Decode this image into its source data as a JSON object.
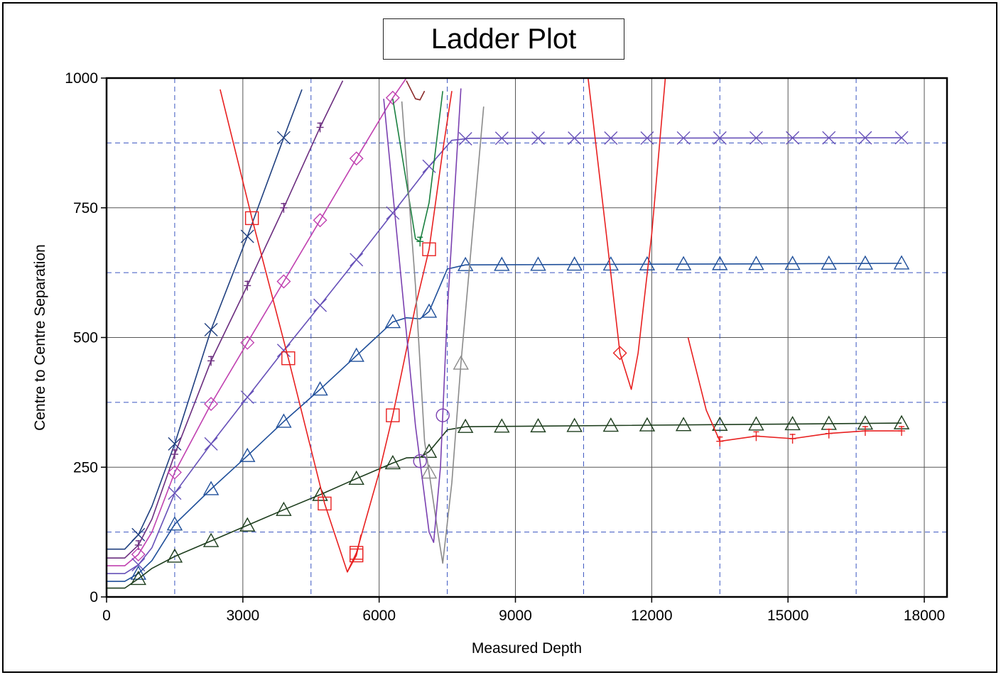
{
  "chart_data": {
    "type": "line",
    "title": "Ladder Plot",
    "xlabel": "Measured Depth",
    "ylabel": "Centre to Centre Separation",
    "xlim": [
      0,
      18500
    ],
    "ylim": [
      0,
      1000
    ],
    "x_ticks": [
      "0",
      "3000",
      "6000",
      "9000",
      "12000",
      "15000",
      "18000"
    ],
    "x_tick_values": [
      0,
      3000,
      6000,
      9000,
      12000,
      15000,
      18000
    ],
    "y_ticks": [
      "0",
      "250",
      "500",
      "750",
      "1000"
    ],
    "y_tick_values": [
      0,
      250,
      500,
      750,
      1000
    ],
    "dashed_x": [
      1500,
      4500,
      7500,
      10500,
      13500,
      16500
    ],
    "dashed_y": [
      125,
      375,
      625,
      875
    ],
    "grid": true,
    "series": [
      {
        "color": "#1f3f7f",
        "marker": "x",
        "markers_x": [
          700,
          1500,
          2300,
          3100,
          3900
        ],
        "points": [
          [
            0,
            92
          ],
          [
            400,
            92
          ],
          [
            700,
            120
          ],
          [
            1000,
            175
          ],
          [
            1500,
            295
          ],
          [
            2300,
            515
          ],
          [
            3100,
            695
          ],
          [
            3900,
            885
          ],
          [
            4300,
            978
          ]
        ]
      },
      {
        "color": "#6b2d7f",
        "marker": "plus",
        "markers_x": [
          700,
          1500,
          2300,
          3100,
          3900,
          4700
        ],
        "points": [
          [
            0,
            75
          ],
          [
            400,
            75
          ],
          [
            700,
            100
          ],
          [
            1000,
            150
          ],
          [
            1500,
            275
          ],
          [
            2300,
            455
          ],
          [
            3100,
            600
          ],
          [
            3900,
            750
          ],
          [
            4700,
            905
          ],
          [
            5200,
            995
          ]
        ]
      },
      {
        "color": "#c040b0",
        "marker": "diamond",
        "markers_x": [
          700,
          1500,
          2300,
          3100,
          3900,
          4700,
          5500,
          6300
        ],
        "points": [
          [
            0,
            60
          ],
          [
            400,
            60
          ],
          [
            700,
            82
          ],
          [
            1000,
            125
          ],
          [
            1500,
            240
          ],
          [
            2300,
            372
          ],
          [
            3100,
            490
          ],
          [
            3900,
            608
          ],
          [
            4700,
            726
          ],
          [
            5500,
            845
          ],
          [
            6300,
            962
          ],
          [
            6600,
            1000
          ]
        ]
      },
      {
        "color": "#6650b8",
        "marker": "x",
        "markers_x": [
          700,
          1500,
          2300,
          3100,
          3900,
          4700,
          5500,
          6300,
          7100,
          7900,
          8700,
          9500,
          10300,
          11100,
          11900,
          12700,
          13500,
          14300,
          15100,
          15900,
          16700,
          17500
        ],
        "points": [
          [
            0,
            45
          ],
          [
            400,
            45
          ],
          [
            700,
            62
          ],
          [
            1000,
            95
          ],
          [
            1500,
            200
          ],
          [
            2300,
            295
          ],
          [
            3100,
            385
          ],
          [
            3900,
            475
          ],
          [
            4700,
            562
          ],
          [
            5500,
            650
          ],
          [
            6300,
            740
          ],
          [
            7100,
            830
          ],
          [
            7600,
            880
          ],
          [
            8000,
            884
          ],
          [
            17500,
            885
          ]
        ]
      },
      {
        "color": "#1f4f9a",
        "marker": "triangle",
        "markers_x": [
          700,
          1500,
          2300,
          3100,
          3900,
          4700,
          5500,
          6300,
          7100,
          7900,
          8700,
          9500,
          10300,
          11100,
          11900,
          12700,
          13500,
          14300,
          15100,
          15900,
          16700,
          17500
        ],
        "points": [
          [
            0,
            30
          ],
          [
            400,
            30
          ],
          [
            700,
            45
          ],
          [
            1000,
            70
          ],
          [
            1500,
            140
          ],
          [
            2300,
            208
          ],
          [
            3100,
            272
          ],
          [
            3900,
            338
          ],
          [
            4700,
            400
          ],
          [
            5500,
            465
          ],
          [
            6300,
            530
          ],
          [
            6600,
            538
          ],
          [
            6900,
            536
          ],
          [
            7100,
            550
          ],
          [
            7500,
            632
          ],
          [
            7900,
            640
          ],
          [
            17500,
            643
          ]
        ]
      },
      {
        "color": "#1d3d1d",
        "marker": "triangle",
        "markers_x": [
          700,
          1500,
          2300,
          3100,
          3900,
          4700,
          5500,
          6300,
          7100,
          7900,
          8700,
          9500,
          10300,
          11100,
          11900,
          12700,
          13500,
          14300,
          15100,
          15900,
          16700,
          17500
        ],
        "points": [
          [
            0,
            17
          ],
          [
            400,
            17
          ],
          [
            700,
            35
          ],
          [
            1000,
            55
          ],
          [
            1500,
            78
          ],
          [
            2300,
            108
          ],
          [
            3100,
            138
          ],
          [
            3900,
            168
          ],
          [
            4700,
            197
          ],
          [
            5500,
            228
          ],
          [
            6300,
            258
          ],
          [
            6600,
            268
          ],
          [
            6900,
            269
          ],
          [
            7100,
            280
          ],
          [
            7500,
            322
          ],
          [
            7900,
            328
          ],
          [
            17500,
            335
          ]
        ]
      },
      {
        "color": "#e82020",
        "marker": "square",
        "markers_x": [
          3200,
          4000,
          4800,
          5500
        ],
        "points": [
          [
            2500,
            978
          ],
          [
            3200,
            730
          ],
          [
            4000,
            460
          ],
          [
            4800,
            180
          ],
          [
            5300,
            48
          ],
          [
            5500,
            80
          ],
          [
            5600,
            120
          ]
        ]
      },
      {
        "color": "#e82020",
        "marker": "square",
        "markers_x": [
          5500,
          6300,
          7100
        ],
        "points": [
          [
            5300,
            48
          ],
          [
            5500,
            85
          ],
          [
            6000,
            240
          ],
          [
            6300,
            350
          ],
          [
            6800,
            560
          ],
          [
            7100,
            670
          ],
          [
            7400,
            860
          ],
          [
            7600,
            975
          ]
        ]
      },
      {
        "color": "#e82020",
        "marker": "plus",
        "markers_x": [
          13500,
          14300,
          15100,
          15900,
          16700,
          17500
        ],
        "points": [
          [
            12800,
            500
          ],
          [
            13200,
            360
          ],
          [
            13500,
            300
          ],
          [
            14300,
            310
          ],
          [
            15100,
            305
          ],
          [
            15900,
            315
          ],
          [
            16700,
            320
          ],
          [
            17500,
            320
          ]
        ]
      },
      {
        "color": "#e82020",
        "marker": "diamond",
        "markers_x": [
          11300
        ],
        "points": [
          [
            10600,
            1000
          ],
          [
            11000,
            700
          ],
          [
            11300,
            470
          ],
          [
            11550,
            400
          ],
          [
            11700,
            470
          ],
          [
            12000,
            700
          ],
          [
            12300,
            1000
          ]
        ]
      },
      {
        "color": "#8a2a2a",
        "marker": "none",
        "markers_x": [],
        "points": [
          [
            6600,
            995
          ],
          [
            6800,
            960
          ],
          [
            6900,
            958
          ],
          [
            7000,
            975
          ]
        ]
      },
      {
        "color": "#1a8040",
        "marker": "plus",
        "markers_x": [
          6900
        ],
        "points": [
          [
            6300,
            960
          ],
          [
            6600,
            800
          ],
          [
            6800,
            690
          ],
          [
            6900,
            685
          ],
          [
            7100,
            760
          ],
          [
            7400,
            975
          ]
        ]
      },
      {
        "color": "#8a8a8a",
        "marker": "triangle",
        "markers_x": [
          7100,
          7800
        ],
        "points": [
          [
            6500,
            955
          ],
          [
            6800,
            600
          ],
          [
            7000,
            300
          ],
          [
            7300,
            120
          ],
          [
            7400,
            65
          ],
          [
            7600,
            220
          ],
          [
            7800,
            450
          ],
          [
            8300,
            945
          ]
        ]
      },
      {
        "color": "#7a40b0",
        "marker": "circle",
        "markers_x": [
          7400,
          6900
        ],
        "points": [
          [
            6100,
            960
          ],
          [
            6500,
            600
          ],
          [
            6800,
            330
          ],
          [
            7100,
            125
          ],
          [
            7200,
            105
          ],
          [
            7350,
            250
          ],
          [
            7500,
            550
          ],
          [
            7800,
            980
          ]
        ]
      }
    ]
  }
}
